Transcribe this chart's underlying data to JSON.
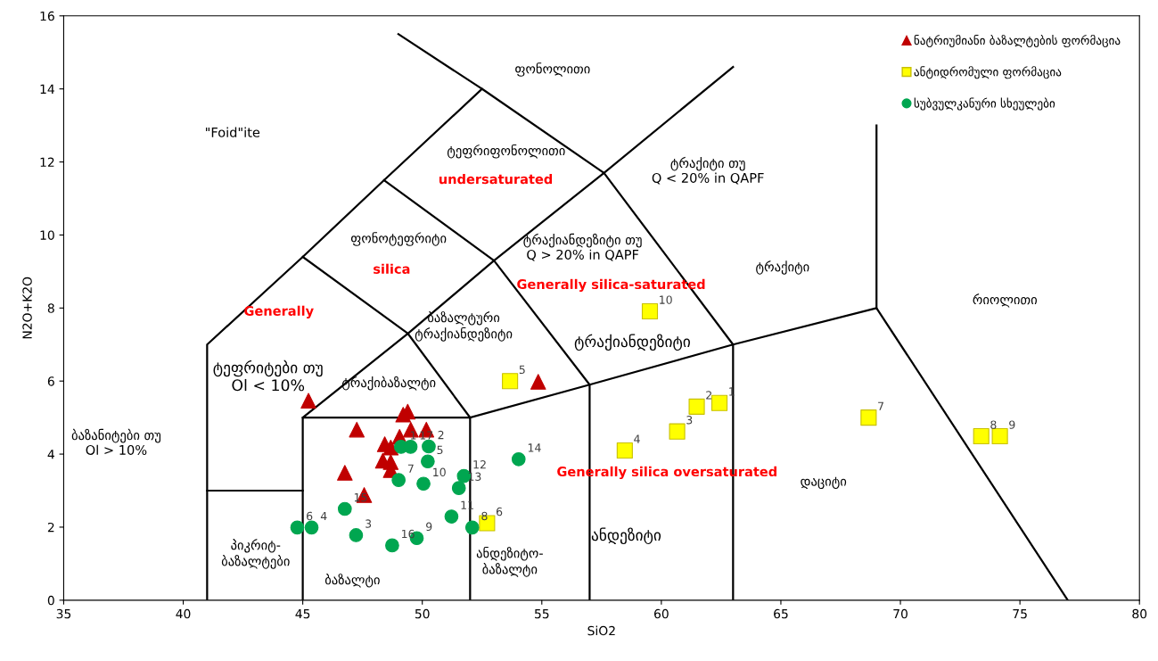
{
  "chart_data": {
    "type": "scatter",
    "xlabel": "SiO2",
    "ylabel": "N2O+K2O",
    "xlim": [
      35,
      80
    ],
    "xticks": [
      35,
      40,
      45,
      50,
      55,
      60,
      65,
      70,
      75,
      80
    ],
    "ylim": [
      0,
      16
    ],
    "yticks": [
      0,
      2,
      4,
      6,
      8,
      10,
      12,
      14,
      16
    ],
    "grid": false,
    "legend": "top right",
    "series": [
      {
        "type": "line",
        "color": "#000000",
        "x": [
          41,
          41,
          45,
          48.4,
          52.5,
          49
        ],
        "values": [
          0,
          7,
          9.4,
          11.5,
          14,
          15.5
        ]
      },
      {
        "type": "line",
        "color": "#000000",
        "x": [
          41,
          45
        ],
        "values": [
          3,
          3
        ]
      },
      {
        "type": "line",
        "color": "#000000",
        "x": [
          45,
          45,
          52,
          52
        ],
        "values": [
          0,
          5,
          5,
          0
        ]
      },
      {
        "type": "line",
        "color": "#000000",
        "x": [
          52,
          57,
          63,
          69,
          77
        ],
        "values": [
          5,
          5.9,
          7,
          8,
          0
        ]
      },
      {
        "type": "line",
        "color": "#000000",
        "x": [
          57,
          57,
          53,
          48.4
        ],
        "values": [
          0,
          5.9,
          9.3,
          11.5
        ]
      },
      {
        "type": "line",
        "color": "#000000",
        "x": [
          63,
          63,
          57.6,
          52.5
        ],
        "values": [
          0,
          7,
          11.7,
          14
        ]
      },
      {
        "type": "line",
        "color": "#000000",
        "x": [
          45,
          49.4,
          52
        ],
        "values": [
          9.4,
          7.3,
          5
        ]
      },
      {
        "type": "line",
        "color": "#000000",
        "x": [
          45,
          49.4,
          53,
          57.6,
          63
        ],
        "values": [
          5,
          7.3,
          9.3,
          11.7,
          14.6
        ]
      },
      {
        "type": "line",
        "color": "#000000",
        "x": [
          69,
          69
        ],
        "values": [
          8,
          13
        ]
      },
      {
        "name": "ნატრიუმიანი ბაზალტების ფორმაცია",
        "color": "#c00000",
        "marker": "triangle",
        "x": [
          45.24,
          49.2,
          49.39,
          47.26,
          49.52,
          50.17,
          49.05,
          48.43,
          48.68,
          48.35,
          48.68,
          48.68,
          46.76,
          47.57,
          54.85
        ],
        "values": [
          5.46,
          5.08,
          5.16,
          4.67,
          4.67,
          4.67,
          4.47,
          4.27,
          4.18,
          3.82,
          3.78,
          3.56,
          3.49,
          2.88,
          5.98
        ]
      },
      {
        "name": "ანტიდრომული ფორმაცია",
        "color": "#ffff00",
        "marker": "square",
        "x": [
          62.43,
          61.48,
          60.66,
          58.47,
          53.67,
          52.71,
          68.67,
          73.38,
          74.16,
          59.52
        ],
        "values": [
          5.4,
          5.3,
          4.62,
          4.1,
          6.0,
          2.11,
          5.0,
          4.49,
          4.49,
          7.91
        ]
      },
      {
        "name": "სუბვულკანური სხეულები",
        "color": "#00a650",
        "marker": "circle",
        "x": [
          49.11,
          50.27,
          47.23,
          45.37,
          50.23,
          44.77,
          49.01,
          52.09,
          49.77,
          50.05,
          51.22,
          51.74,
          51.53,
          54.03,
          46.76,
          48.74,
          49.51
        ],
        "values": [
          4.2,
          4.21,
          1.78,
          1.99,
          3.8,
          1.99,
          3.29,
          1.99,
          1.7,
          3.19,
          2.29,
          3.4,
          3.07,
          3.86,
          2.5,
          1.5,
          4.2
        ]
      }
    ],
    "annotations": [
      "ფონოლითი",
      "\"Foid\"ite",
      "ტეფრიფონოლითი",
      "undersaturated",
      "ტრაქიტი თუ\nQ < 20% in QAPF",
      "ფონოტეფრიტი",
      "silica",
      "ტრაქიანდეზიტი თუ\nQ > 20% in QAPF",
      "Generally silica-saturated",
      "ტრაქიტი",
      "რიოლითი",
      "Generally",
      "ბაზალტური\nტრაქიანდეზიტი",
      "ტრაქიანდეზიტი",
      "ტეფრიტები თუ\nOl < 10%",
      "ტრაქიბაზალტი",
      "ბაზანიტები თუ\nOl > 10%",
      "Generally silica oversaturated",
      "დაციტი",
      "ანდეზიტი",
      "ანდეზიტო-\nბაზალტი",
      "პიკრიტ-\nბაზალტები",
      "ბაზალტი",
      {
        "text": "1",
        "x": 62.43,
        "y": 5.4
      },
      {
        "text": "2",
        "x": 61.48,
        "y": 5.3
      },
      {
        "text": "3",
        "x": 60.66,
        "y": 4.62
      },
      {
        "text": "4",
        "x": 58.47,
        "y": 4.1
      },
      {
        "text": "5",
        "x": 53.67,
        "y": 6.0
      },
      {
        "text": "6",
        "x": 52.71,
        "y": 2.11
      },
      {
        "text": "7",
        "x": 68.67,
        "y": 5.0
      },
      {
        "text": "8",
        "x": 73.38,
        "y": 4.49
      },
      {
        "text": "9",
        "x": 74.16,
        "y": 4.49
      },
      {
        "text": "10",
        "x": 59.52,
        "y": 7.91
      },
      {
        "text": "1",
        "x": 49.11,
        "y": 4.2
      },
      {
        "text": "2",
        "x": 50.27,
        "y": 4.21
      },
      {
        "text": "3",
        "x": 47.23,
        "y": 1.78
      },
      {
        "text": "4",
        "x": 45.37,
        "y": 1.99
      },
      {
        "text": "5",
        "x": 50.23,
        "y": 3.8
      },
      {
        "text": "6",
        "x": 44.77,
        "y": 1.99
      },
      {
        "text": "7",
        "x": 49.01,
        "y": 3.29
      },
      {
        "text": "8",
        "x": 52.09,
        "y": 1.99
      },
      {
        "text": "9",
        "x": 49.77,
        "y": 1.7
      },
      {
        "text": "10",
        "x": 50.05,
        "y": 3.19
      },
      {
        "text": "11",
        "x": 51.22,
        "y": 2.29
      },
      {
        "text": "12",
        "x": 51.74,
        "y": 3.4
      },
      {
        "text": "13",
        "x": 51.53,
        "y": 3.07
      },
      {
        "text": "14",
        "x": 54.03,
        "y": 3.86
      },
      {
        "text": "15",
        "x": 46.76,
        "y": 2.5
      },
      {
        "text": "16",
        "x": 48.74,
        "y": 1.5
      },
      {
        "text": "17",
        "x": 49.51,
        "y": 4.2
      }
    ]
  }
}
